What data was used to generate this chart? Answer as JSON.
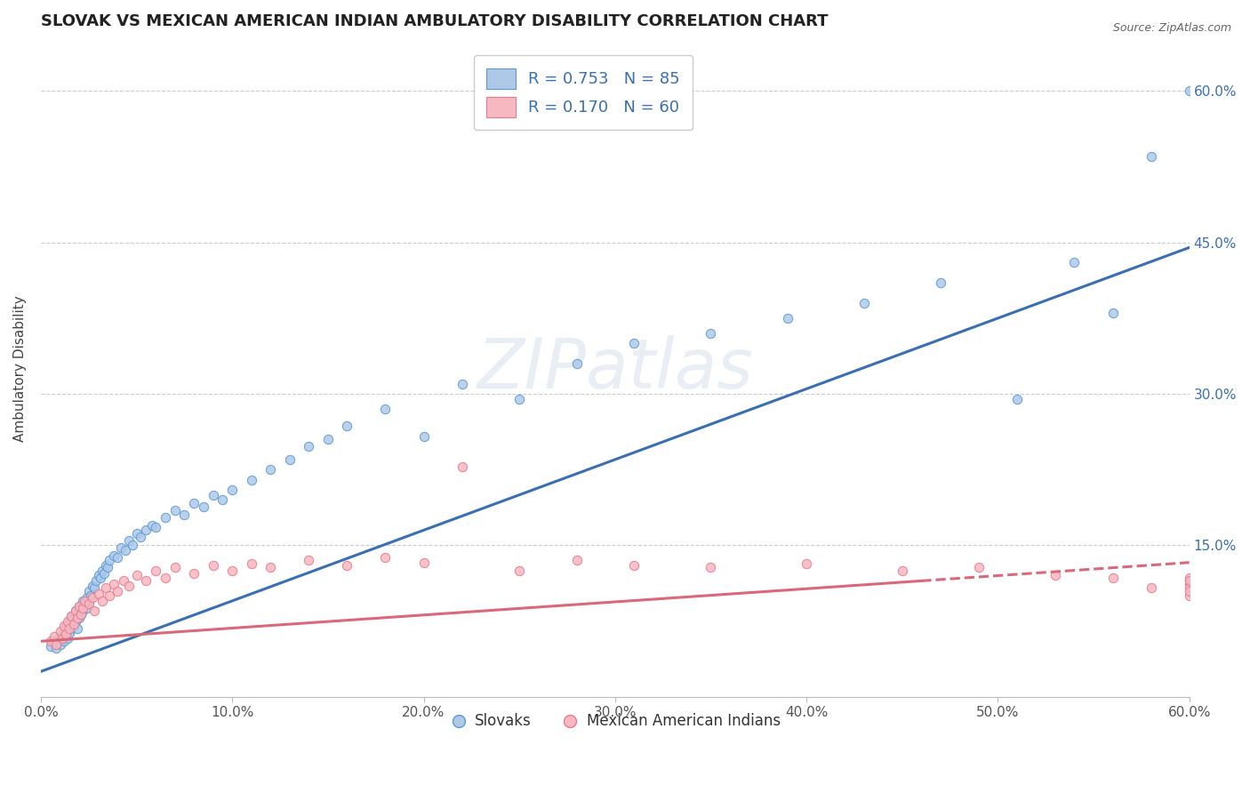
{
  "title": "SLOVAK VS MEXICAN AMERICAN INDIAN AMBULATORY DISABILITY CORRELATION CHART",
  "source": "Source: ZipAtlas.com",
  "ylabel": "Ambulatory Disability",
  "xmin": 0.0,
  "xmax": 0.6,
  "ymin": 0.0,
  "ymax": 0.65,
  "xticks": [
    0.0,
    0.1,
    0.2,
    0.3,
    0.4,
    0.5,
    0.6
  ],
  "xtick_labels": [
    "0.0%",
    "10.0%",
    "20.0%",
    "30.0%",
    "40.0%",
    "50.0%",
    "60.0%"
  ],
  "ytick_vals": [
    0.0,
    0.15,
    0.3,
    0.45,
    0.6
  ],
  "ytick_labels": [
    "",
    "15.0%",
    "30.0%",
    "45.0%",
    "60.0%"
  ],
  "legend_text1": "R = 0.753   N = 85",
  "legend_text2": "R = 0.170   N = 60",
  "color_blue_fill": "#aec8e8",
  "color_blue_edge": "#5b9bd5",
  "color_pink_fill": "#f7b8c2",
  "color_pink_edge": "#e87a8a",
  "color_line_blue": "#3a6fb0",
  "color_line_pink": "#d9697a",
  "dot_size": 55,
  "legend_label1": "Slovaks",
  "legend_label2": "Mexican American Indians",
  "blue_trend_x0": 0.0,
  "blue_trend_y0": 0.025,
  "blue_trend_x1": 0.6,
  "blue_trend_y1": 0.445,
  "pink_trend_x0": 0.0,
  "pink_trend_y0": 0.055,
  "pink_trend_x1": 0.6,
  "pink_trend_y1": 0.133,
  "blue_x": [
    0.005,
    0.007,
    0.008,
    0.01,
    0.01,
    0.011,
    0.012,
    0.012,
    0.013,
    0.013,
    0.014,
    0.014,
    0.015,
    0.015,
    0.015,
    0.016,
    0.016,
    0.017,
    0.017,
    0.018,
    0.018,
    0.019,
    0.019,
    0.02,
    0.02,
    0.021,
    0.021,
    0.022,
    0.022,
    0.023,
    0.024,
    0.024,
    0.025,
    0.025,
    0.026,
    0.027,
    0.028,
    0.029,
    0.03,
    0.031,
    0.032,
    0.033,
    0.034,
    0.035,
    0.036,
    0.038,
    0.04,
    0.042,
    0.044,
    0.046,
    0.048,
    0.05,
    0.052,
    0.055,
    0.058,
    0.06,
    0.065,
    0.07,
    0.075,
    0.08,
    0.085,
    0.09,
    0.095,
    0.1,
    0.11,
    0.12,
    0.13,
    0.14,
    0.15,
    0.16,
    0.18,
    0.2,
    0.22,
    0.25,
    0.28,
    0.31,
    0.35,
    0.39,
    0.43,
    0.47,
    0.51,
    0.54,
    0.56,
    0.58,
    0.6
  ],
  "blue_y": [
    0.05,
    0.055,
    0.048,
    0.06,
    0.052,
    0.058,
    0.065,
    0.055,
    0.07,
    0.062,
    0.068,
    0.058,
    0.075,
    0.063,
    0.072,
    0.08,
    0.068,
    0.078,
    0.07,
    0.085,
    0.075,
    0.082,
    0.068,
    0.09,
    0.078,
    0.088,
    0.082,
    0.095,
    0.085,
    0.092,
    0.098,
    0.088,
    0.105,
    0.095,
    0.1,
    0.11,
    0.108,
    0.115,
    0.12,
    0.118,
    0.125,
    0.122,
    0.13,
    0.128,
    0.135,
    0.14,
    0.138,
    0.148,
    0.145,
    0.155,
    0.15,
    0.162,
    0.158,
    0.165,
    0.17,
    0.168,
    0.178,
    0.185,
    0.18,
    0.192,
    0.188,
    0.2,
    0.195,
    0.205,
    0.215,
    0.225,
    0.235,
    0.248,
    0.255,
    0.268,
    0.285,
    0.258,
    0.31,
    0.295,
    0.33,
    0.35,
    0.36,
    0.375,
    0.39,
    0.41,
    0.295,
    0.43,
    0.38,
    0.535,
    0.6
  ],
  "pink_x": [
    0.005,
    0.007,
    0.008,
    0.01,
    0.011,
    0.012,
    0.013,
    0.014,
    0.015,
    0.016,
    0.017,
    0.018,
    0.019,
    0.02,
    0.021,
    0.022,
    0.023,
    0.025,
    0.027,
    0.028,
    0.03,
    0.032,
    0.034,
    0.036,
    0.038,
    0.04,
    0.043,
    0.046,
    0.05,
    0.055,
    0.06,
    0.065,
    0.07,
    0.08,
    0.09,
    0.1,
    0.11,
    0.12,
    0.14,
    0.16,
    0.18,
    0.2,
    0.22,
    0.25,
    0.28,
    0.31,
    0.35,
    0.4,
    0.45,
    0.49,
    0.53,
    0.56,
    0.58,
    0.6,
    0.6,
    0.6,
    0.6,
    0.6,
    0.6,
    0.6
  ],
  "pink_y": [
    0.055,
    0.06,
    0.052,
    0.065,
    0.058,
    0.07,
    0.062,
    0.075,
    0.068,
    0.08,
    0.072,
    0.085,
    0.078,
    0.09,
    0.082,
    0.088,
    0.095,
    0.092,
    0.098,
    0.085,
    0.102,
    0.095,
    0.108,
    0.1,
    0.112,
    0.105,
    0.115,
    0.11,
    0.12,
    0.115,
    0.125,
    0.118,
    0.128,
    0.122,
    0.13,
    0.125,
    0.132,
    0.128,
    0.135,
    0.13,
    0.138,
    0.133,
    0.228,
    0.125,
    0.135,
    0.13,
    0.128,
    0.132,
    0.125,
    0.128,
    0.12,
    0.118,
    0.108,
    0.1,
    0.112,
    0.115,
    0.118,
    0.108,
    0.115,
    0.105
  ]
}
